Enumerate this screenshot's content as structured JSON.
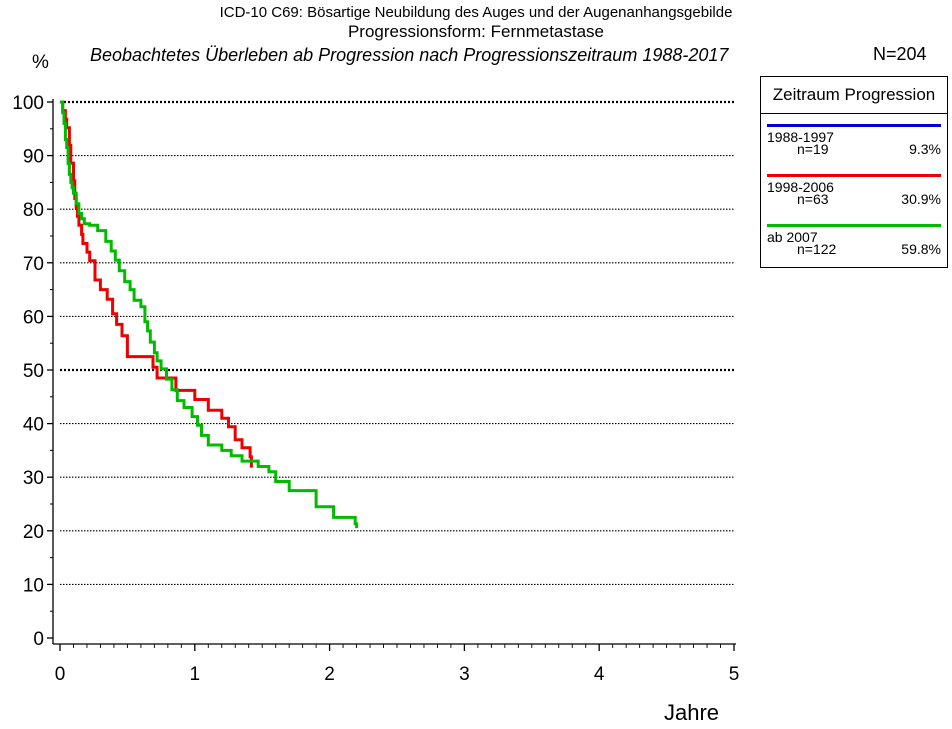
{
  "header": {
    "title": "ICD-10 C69: Bösartige Neubildung des Auges und der Augenanhangsgebilde",
    "subtitle": "Progressionsform: Fernmetastase",
    "caption": "Beobachtetes Überleben ab Progression nach Progressionszeitraum 1988-2017",
    "n_total": "N=204"
  },
  "legend": {
    "title": "Zeitraum Progression",
    "items": [
      {
        "label": "1988-1997",
        "n": "n=19",
        "pct": "9.3%",
        "color": "#0000dd"
      },
      {
        "label": "1998-2006",
        "n": "n=63",
        "pct": "30.9%",
        "color": "#ee0000"
      },
      {
        "label": "ab 2007",
        "n": "n=122",
        "pct": "59.8%",
        "color": "#00bb00"
      }
    ]
  },
  "chart_data": {
    "type": "line",
    "step": true,
    "xlabel": "Jahre",
    "ylabel": "%",
    "xlim": [
      0,
      5
    ],
    "ylim": [
      0,
      100
    ],
    "xticks": [
      "0",
      "1",
      "2",
      "3",
      "4",
      "5"
    ],
    "yticks": [
      "0",
      "10",
      "20",
      "30",
      "40",
      "50",
      "60",
      "70",
      "80",
      "90",
      "100"
    ],
    "grid": "horizontal dotted at every 10%, bold at 50 and 100",
    "legend_position": "top-right, outside plot",
    "series": [
      {
        "name": "1988-1997",
        "color": "#0000dd",
        "x": [],
        "y": []
      },
      {
        "name": "1998-2006",
        "color": "#ee0000",
        "x": [
          0,
          0.02,
          0.04,
          0.05,
          0.07,
          0.08,
          0.1,
          0.11,
          0.12,
          0.13,
          0.14,
          0.16,
          0.17,
          0.2,
          0.22,
          0.26,
          0.3,
          0.35,
          0.39,
          0.42,
          0.46,
          0.5,
          0.53,
          0.69,
          0.72,
          0.79,
          0.86,
          1.0,
          1.1,
          1.2,
          1.25,
          1.3,
          1.35,
          1.41,
          1.42
        ],
        "y": [
          100,
          98.4,
          96.8,
          95.2,
          91.9,
          88.6,
          85.3,
          82.0,
          80.4,
          78.7,
          77.0,
          75.3,
          73.6,
          72.0,
          70.4,
          66.8,
          65.0,
          63.2,
          60.5,
          58.5,
          56.4,
          52.5,
          52.5,
          50.5,
          48.5,
          48.5,
          46.2,
          44.5,
          42.5,
          41.0,
          39.4,
          37.0,
          35.5,
          33.8,
          31.8
        ]
      },
      {
        "name": "ab 2007",
        "color": "#00bb00",
        "x": [
          0,
          0.02,
          0.03,
          0.04,
          0.05,
          0.06,
          0.07,
          0.08,
          0.09,
          0.1,
          0.12,
          0.14,
          0.16,
          0.18,
          0.22,
          0.28,
          0.34,
          0.38,
          0.41,
          0.44,
          0.48,
          0.52,
          0.55,
          0.6,
          0.63,
          0.65,
          0.67,
          0.7,
          0.72,
          0.75,
          0.79,
          0.83,
          0.87,
          0.92,
          0.98,
          1.02,
          1.05,
          1.1,
          1.2,
          1.27,
          1.3,
          1.35,
          1.4,
          1.47,
          1.55,
          1.6,
          1.65,
          1.7,
          1.9,
          1.95,
          2.03,
          2.19,
          2.2
        ],
        "y": [
          100,
          98.0,
          96.0,
          93.0,
          91.5,
          88.5,
          86.5,
          85.0,
          84.0,
          83.0,
          81.0,
          79.2,
          78.2,
          77.3,
          77.0,
          76.0,
          74.0,
          72.2,
          70.5,
          68.5,
          66.5,
          65.0,
          63.0,
          61.8,
          59.0,
          57.3,
          55.2,
          53.2,
          51.7,
          50.2,
          48.3,
          46.3,
          44.3,
          43.0,
          41.3,
          39.7,
          37.8,
          36.0,
          35.0,
          34.0,
          34.0,
          33.0,
          33.0,
          32.0,
          31.0,
          29.2,
          29.2,
          27.5,
          24.5,
          24.5,
          22.5,
          21.3,
          20.5
        ]
      }
    ]
  }
}
